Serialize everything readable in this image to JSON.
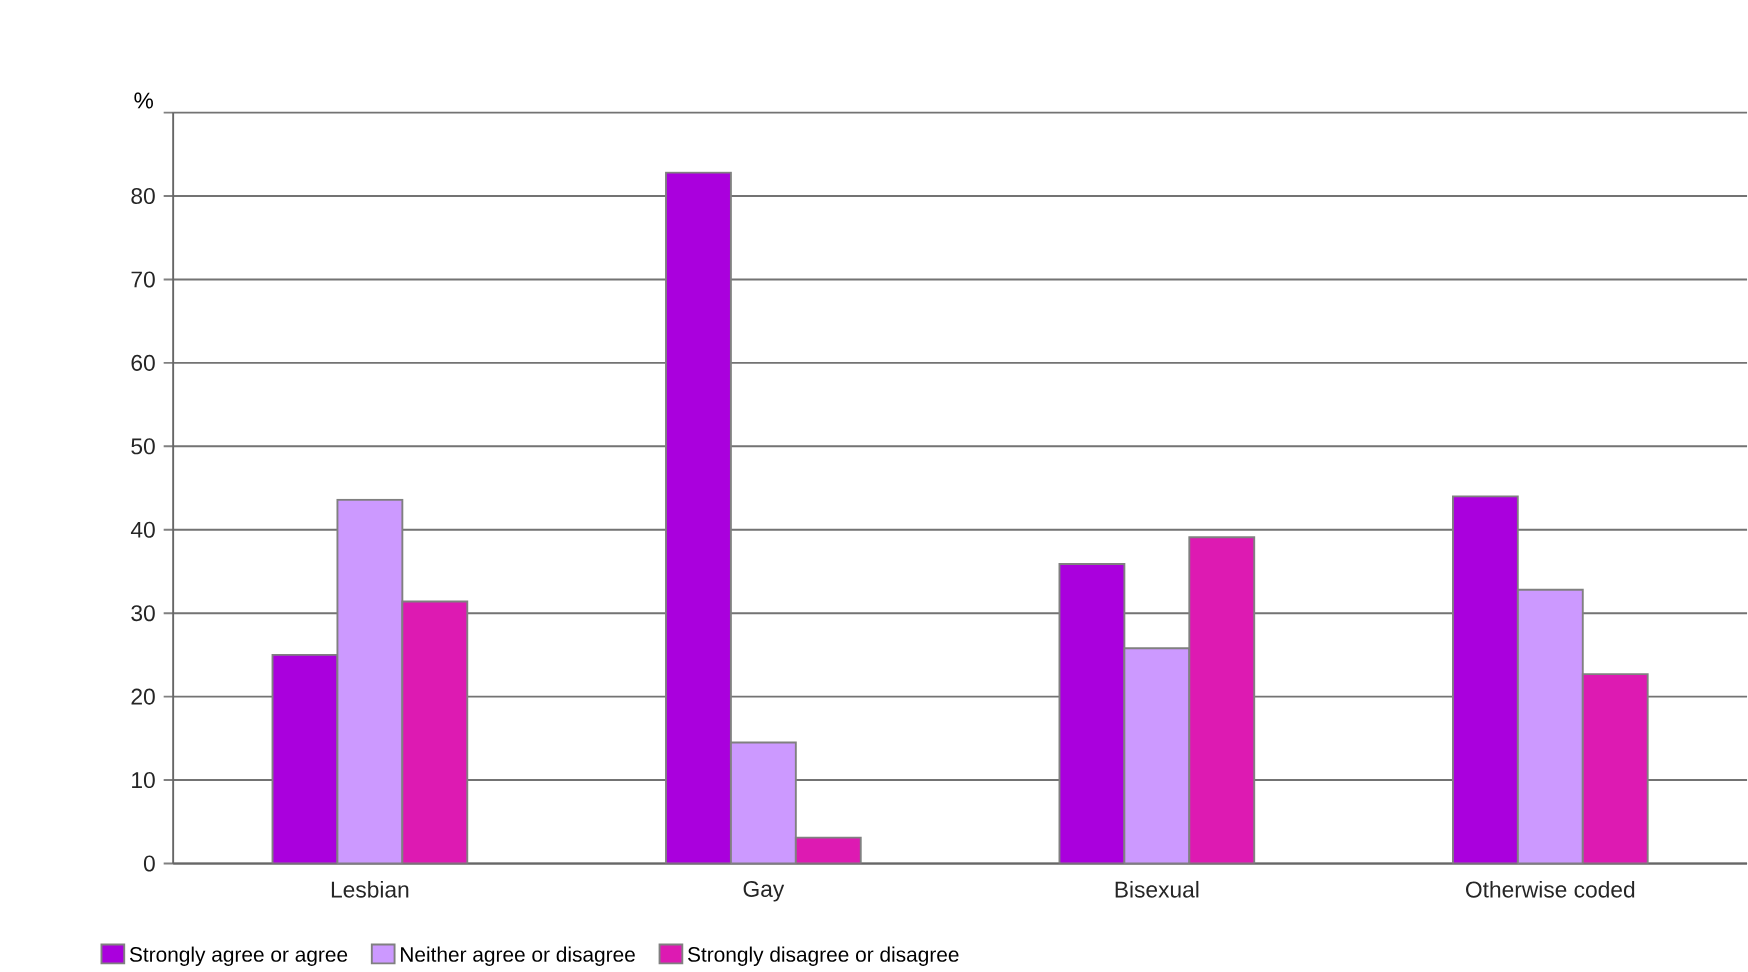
{
  "chart_data": {
    "type": "bar",
    "ylabel": "%",
    "categories": [
      "Lesbian",
      "Gay",
      "Bisexual",
      "Otherwise coded"
    ],
    "series": [
      {
        "name": "Strongly agree or agree",
        "color": "#aa00dd",
        "values": [
          25,
          82.8,
          35.9,
          44
        ]
      },
      {
        "name": "Neither agree or disagree",
        "color": "#cc99ff",
        "values": [
          43.6,
          14.5,
          25.8,
          32.8
        ]
      },
      {
        "name": "Strongly disagree or disagree",
        "color": "#dd1ab2",
        "values": [
          31.4,
          3.1,
          39.1,
          22.7
        ]
      }
    ],
    "ylim": [
      0,
      90
    ],
    "yticks": [
      0,
      10,
      20,
      30,
      40,
      50,
      60,
      70,
      80,
      {
        "value": 90,
        "label": null
      }
    ],
    "grid": "y",
    "legend": "bottom"
  }
}
